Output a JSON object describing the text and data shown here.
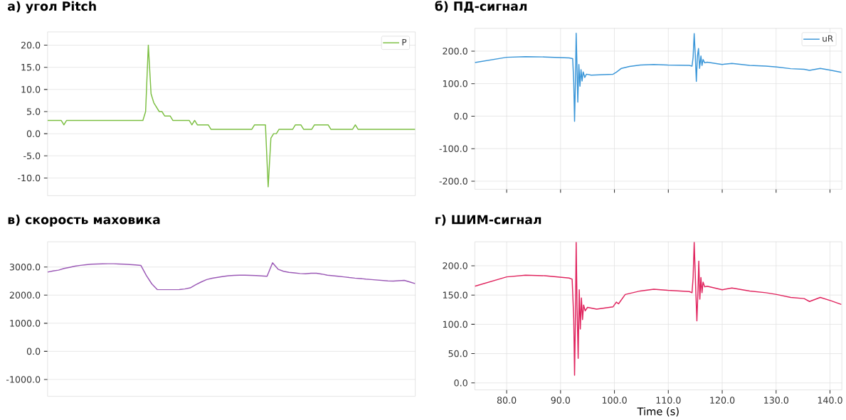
{
  "chart_data": [
    {
      "type": "line",
      "title": "а) угол Pitch",
      "ylim": [
        -14,
        23
      ],
      "categories": [
        null,
        null,
        null,
        null,
        null,
        null,
        null,
        null,
        null,
        null,
        null,
        null,
        null,
        null,
        null,
        null,
        null,
        null,
        null,
        null,
        null,
        null,
        null,
        null,
        null,
        null,
        null,
        null,
        null,
        null,
        null,
        null,
        null,
        null,
        null,
        null,
        null,
        null,
        null,
        null,
        null,
        null,
        null,
        null,
        null,
        null,
        null,
        null,
        null,
        null,
        null,
        null,
        null,
        null,
        null,
        null,
        null,
        null,
        null,
        null,
        null,
        null,
        null,
        null,
        null,
        null,
        null,
        null,
        null,
        null,
        null,
        null,
        null,
        null,
        null,
        null,
        null,
        null,
        null,
        null,
        null,
        null,
        null,
        null,
        null,
        null,
        null,
        null,
        null,
        null,
        null,
        null,
        null,
        null,
        null,
        null,
        null,
        null,
        null,
        null,
        null,
        null,
        null,
        null,
        null,
        null,
        null,
        null,
        null,
        null,
        null,
        null,
        null,
        null,
        null,
        null,
        null,
        null,
        null,
        null,
        null,
        null,
        null,
        null,
        null,
        null,
        null,
        null,
        null,
        null,
        null,
        null,
        null,
        null,
        null,
        null
      ],
      "yticks": [
        {
          "value": -10,
          "label": "-10.0"
        },
        {
          "value": -5,
          "label": "-5.0"
        },
        {
          "value": 0,
          "label": "0.0"
        },
        {
          "value": 5,
          "label": "5.0"
        },
        {
          "value": 10,
          "label": "10.0"
        },
        {
          "value": 15,
          "label": "15.0"
        },
        {
          "value": 20,
          "label": "20.0"
        }
      ],
      "tick_labels": "y",
      "grid": true,
      "legend": "top right",
      "marker": "none",
      "line_style": "solid",
      "series": [
        {
          "name": "P",
          "color": "#7cbf42",
          "values": [
            3,
            3,
            3,
            3,
            3,
            3,
            2,
            3,
            3,
            3,
            3,
            3,
            3,
            3,
            3,
            3,
            3,
            3,
            3,
            3,
            3,
            3,
            3,
            3,
            3,
            3,
            3,
            3,
            3,
            3,
            3,
            3,
            3,
            3,
            3,
            3,
            5,
            20,
            9,
            7,
            6,
            5,
            5,
            4,
            4,
            4,
            3,
            3,
            3,
            3,
            3,
            3,
            3,
            2,
            3,
            2,
            2,
            2,
            2,
            2,
            1,
            1,
            1,
            1,
            1,
            1,
            1,
            1,
            1,
            1,
            1,
            1,
            1,
            1,
            1,
            1,
            2,
            2,
            2,
            2,
            2,
            -12,
            -1,
            0,
            0,
            1,
            1,
            1,
            1,
            1,
            1,
            2,
            2,
            2,
            1,
            1,
            1,
            1,
            2,
            2,
            2,
            2,
            2,
            2,
            1,
            1,
            1,
            1,
            1,
            1,
            1,
            1,
            1,
            2,
            1,
            1,
            1,
            1,
            1,
            1,
            1,
            1,
            1,
            1,
            1,
            1,
            1,
            1,
            1,
            1,
            1,
            1,
            1,
            1,
            1,
            1
          ]
        }
      ]
    },
    {
      "type": "line",
      "title": "б)    ПД-сигнал",
      "xlim": [
        74.1,
        142.2
      ],
      "ylim": [
        -225,
        270
      ],
      "xticks": [
        {
          "value": 80,
          "label": null
        },
        {
          "value": 90,
          "label": null
        },
        {
          "value": 100,
          "label": null
        },
        {
          "value": 110,
          "label": null
        },
        {
          "value": 120,
          "label": null
        },
        {
          "value": 130,
          "label": null
        },
        {
          "value": 140,
          "label": null
        }
      ],
      "yticks": [
        {
          "value": -200,
          "label": "-200.0"
        },
        {
          "value": -100,
          "label": "-100.0"
        },
        {
          "value": 0,
          "label": "0.0"
        },
        {
          "value": 100,
          "label": "100.0"
        },
        {
          "value": 200,
          "label": "200.0"
        }
      ],
      "tick_labels": "y",
      "grid": true,
      "legend": "top right",
      "marker": "none",
      "line_style": "solid",
      "series": [
        {
          "name": "uR",
          "color": "#3a96d8",
          "x": [
            74.1,
            80,
            83.5,
            87.1,
            91.6,
            92.25,
            92.45,
            92.6,
            92.76,
            92.9,
            93.06,
            93.2,
            93.4,
            93.6,
            93.8,
            94.0,
            94.2,
            94.5,
            94.8,
            95.7,
            99.75,
            100.35,
            101.3,
            102.8,
            104.8,
            107.3,
            109.9,
            113.9,
            114.4,
            114.6,
            114.8,
            115.0,
            115.2,
            115.4,
            115.6,
            115.8,
            116.05,
            116.25,
            116.45,
            116.75,
            117.2,
            120,
            121.8,
            125.1,
            128.1,
            130.1,
            132.7,
            135.2,
            136.2,
            138.2,
            140.25,
            142.1
          ],
          "values": [
            165,
            181,
            183,
            182,
            179,
            177,
            105,
            -16,
            105,
            255,
            147,
            43,
            159,
            92,
            143,
            108,
            136,
            119,
            129,
            126,
            129,
            135,
            147,
            153,
            157,
            159,
            157,
            156,
            154,
            181,
            254,
            189,
            107,
            185,
            208,
            147,
            185,
            156,
            174,
            164,
            166,
            159,
            162,
            156,
            154,
            151,
            146,
            144,
            141,
            147,
            141,
            135
          ]
        }
      ]
    },
    {
      "type": "line",
      "title": "в) скорость маховика",
      "ylim": [
        -1600,
        3900
      ],
      "categories": [
        null,
        null,
        null,
        null,
        null,
        null,
        null,
        null,
        null,
        null,
        null,
        null,
        null,
        null,
        null,
        null,
        null,
        null,
        null,
        null,
        null,
        null,
        null,
        null,
        null,
        null,
        null,
        null,
        null,
        null,
        null,
        null,
        null,
        null,
        null,
        null,
        null,
        null,
        null,
        null,
        null,
        null,
        null,
        null,
        null,
        null,
        null,
        null,
        null,
        null,
        null,
        null,
        null,
        null,
        null,
        null,
        null,
        null,
        null,
        null,
        null,
        null,
        null,
        null,
        null,
        null,
        null,
        null
      ],
      "yticks": [
        {
          "value": -1000,
          "label": "-1000.0"
        },
        {
          "value": 0,
          "label": "0.0"
        },
        {
          "value": 1000,
          "label": "1000.0"
        },
        {
          "value": 2000,
          "label": "2000.0"
        },
        {
          "value": 3000,
          "label": "3000.0"
        }
      ],
      "tick_labels": "y",
      "grid": true,
      "marker": "none",
      "line_style": "solid",
      "series": [
        {
          "color": "#9b59b6",
          "values": [
            2820,
            2860,
            2890,
            2950,
            2990,
            3030,
            3060,
            3085,
            3100,
            3110,
            3115,
            3117,
            3117,
            3110,
            3100,
            3088,
            3075,
            3060,
            2700,
            2400,
            2200,
            2194,
            2194,
            2194,
            2200,
            2220,
            2260,
            2370,
            2470,
            2555,
            2600,
            2635,
            2665,
            2690,
            2705,
            2710,
            2710,
            2705,
            2695,
            2685,
            2670,
            3150,
            2923,
            2850,
            2810,
            2790,
            2770,
            2760,
            2780,
            2780,
            2750,
            2710,
            2690,
            2670,
            2650,
            2625,
            2605,
            2590,
            2570,
            2555,
            2540,
            2525,
            2510,
            2500,
            2515,
            2525,
            2470,
            2410
          ]
        }
      ]
    },
    {
      "type": "line",
      "title": "г) ШИМ-сигнал",
      "xlabel": "Time  (s)",
      "xlim": [
        74.1,
        142.2
      ],
      "ylim": [
        -12,
        241
      ],
      "xticks": [
        {
          "value": 80,
          "label": "80.0"
        },
        {
          "value": 90,
          "label": "90.0"
        },
        {
          "value": 100,
          "label": "100.0"
        },
        {
          "value": 110,
          "label": "110.0"
        },
        {
          "value": 120,
          "label": "120.0"
        },
        {
          "value": 130,
          "label": "130.0"
        },
        {
          "value": 140,
          "label": "140.0"
        }
      ],
      "yticks": [
        {
          "value": 0,
          "label": "0.0"
        },
        {
          "value": 50,
          "label": "50.0"
        },
        {
          "value": 100,
          "label": "100.0"
        },
        {
          "value": 150,
          "label": "150.0"
        },
        {
          "value": 200,
          "label": "200.0"
        }
      ],
      "grid": true,
      "marker": "none",
      "line_style": "solid",
      "series": [
        {
          "color": "#e0245e",
          "x": [
            74.1,
            80,
            83.5,
            87.1,
            91.6,
            92.15,
            92.45,
            92.6,
            92.76,
            92.9,
            93.06,
            93.27,
            93.47,
            93.67,
            93.87,
            94.08,
            94.28,
            94.58,
            95.0,
            96.7,
            99.75,
            100.35,
            100.76,
            102.0,
            104.8,
            107.3,
            109.9,
            113.9,
            114.4,
            114.6,
            114.8,
            115.1,
            115.3,
            115.5,
            115.65,
            115.85,
            116.05,
            116.25,
            116.45,
            116.75,
            117.2,
            120,
            121.8,
            125.1,
            128.1,
            130.1,
            132.7,
            135.2,
            136.2,
            138.2,
            140.25,
            142.1
          ],
          "values": [
            165,
            181,
            184,
            183,
            179,
            177,
            110,
            13,
            110,
            240,
            133,
            42,
            159,
            92,
            145,
            108,
            133,
            123,
            129,
            126,
            130,
            138,
            135,
            151,
            157,
            160,
            158,
            156,
            154,
            180,
            240,
            157,
            106,
            157,
            208,
            143,
            180,
            154,
            172,
            164,
            165,
            159,
            162,
            157,
            154,
            151,
            146,
            144,
            139,
            146,
            140,
            134
          ]
        }
      ]
    }
  ]
}
